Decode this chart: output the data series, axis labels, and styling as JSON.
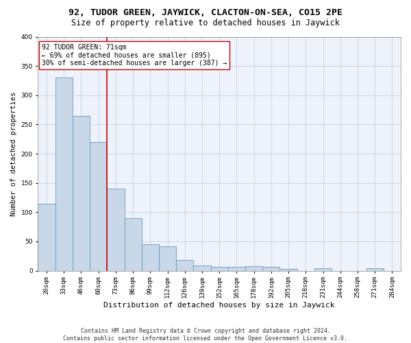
{
  "title": "92, TUDOR GREEN, JAYWICK, CLACTON-ON-SEA, CO15 2PE",
  "subtitle": "Size of property relative to detached houses in Jaywick",
  "xlabel": "Distribution of detached houses by size in Jaywick",
  "ylabel": "Number of detached properties",
  "footer_line1": "Contains HM Land Registry data © Crown copyright and database right 2024.",
  "footer_line2": "Contains public sector information licensed under the Open Government Licence v3.0.",
  "categories": [
    "20sqm",
    "33sqm",
    "46sqm",
    "60sqm",
    "73sqm",
    "86sqm",
    "99sqm",
    "112sqm",
    "126sqm",
    "139sqm",
    "152sqm",
    "165sqm",
    "178sqm",
    "192sqm",
    "205sqm",
    "218sqm",
    "231sqm",
    "244sqm",
    "258sqm",
    "271sqm",
    "284sqm"
  ],
  "values": [
    115,
    330,
    265,
    220,
    140,
    90,
    45,
    42,
    18,
    9,
    7,
    6,
    8,
    6,
    3,
    0,
    4,
    0,
    0,
    4,
    0
  ],
  "bar_color": "#c8d8e8",
  "bar_edge_color": "#6699bb",
  "highlight_line_index": 4,
  "highlight_line_color": "#cc0000",
  "annotation_title": "92 TUDOR GREEN: 71sqm",
  "annotation_line1": "← 69% of detached houses are smaller (895)",
  "annotation_line2": "30% of semi-detached houses are larger (387) →",
  "annotation_box_color": "#ffffff",
  "annotation_box_edge_color": "#cc0000",
  "ylim": [
    0,
    400
  ],
  "yticks": [
    0,
    50,
    100,
    150,
    200,
    250,
    300,
    350,
    400
  ],
  "background_color": "#eef2fb",
  "title_fontsize": 9.5,
  "subtitle_fontsize": 8.5,
  "ylabel_fontsize": 7.5,
  "xlabel_fontsize": 8,
  "tick_fontsize": 6.5,
  "annotation_fontsize": 7,
  "footer_fontsize": 6
}
